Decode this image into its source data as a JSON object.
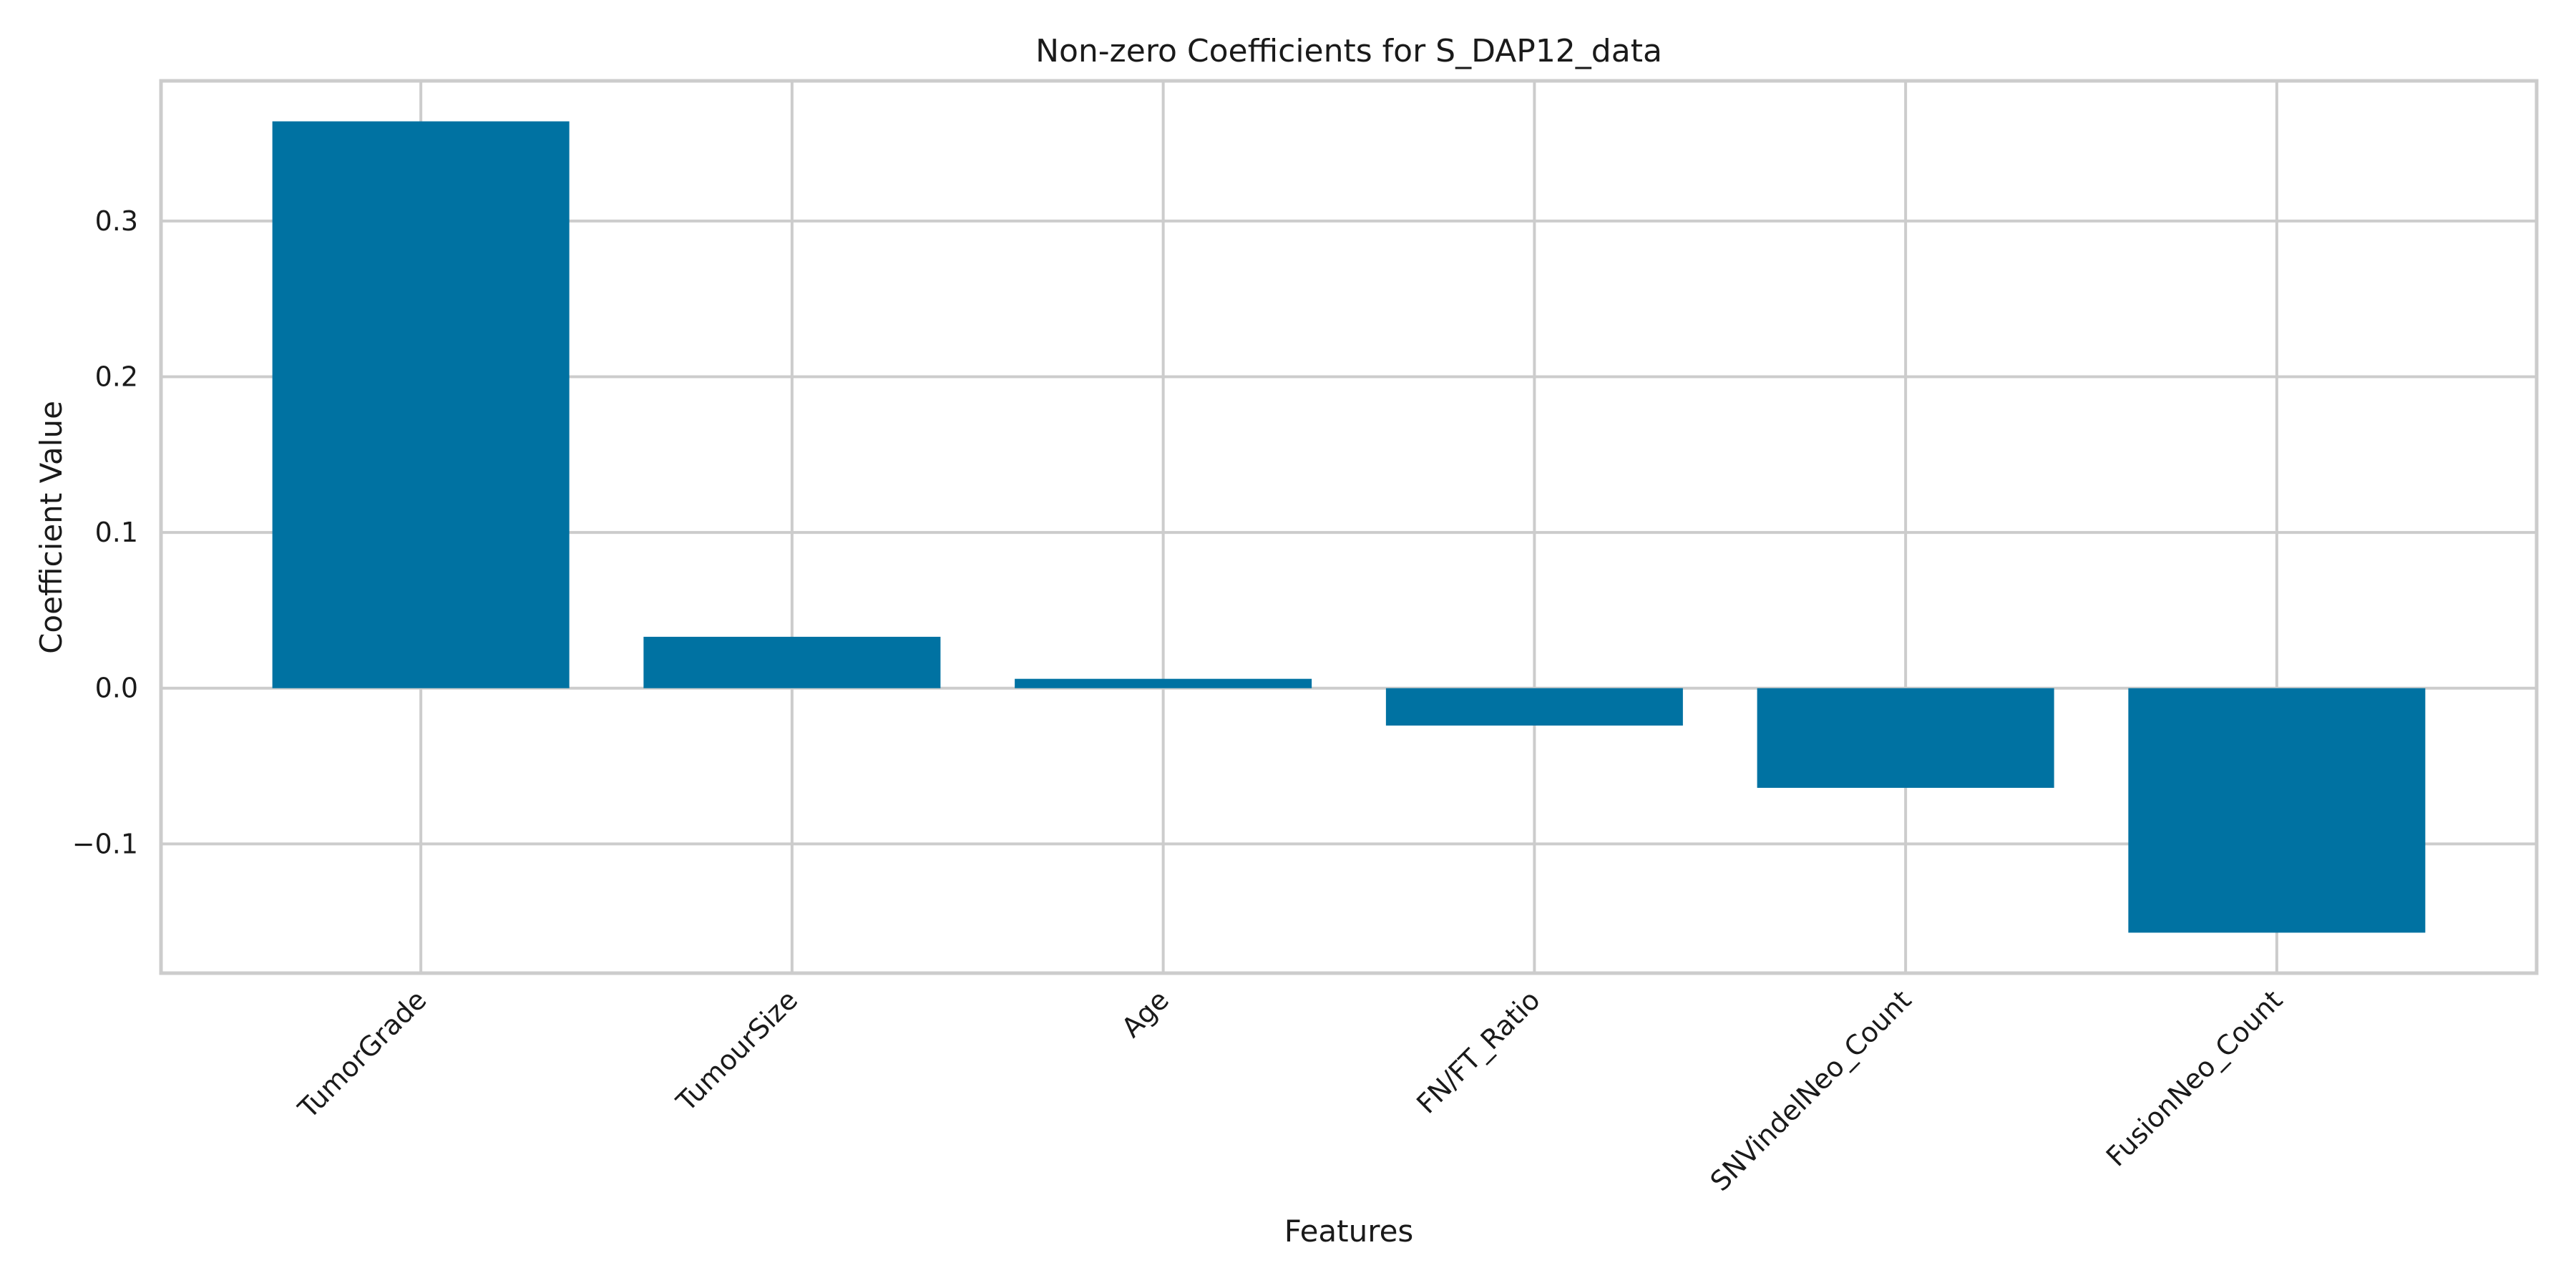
{
  "chart_data": {
    "type": "bar",
    "title": "Non-zero Coefficients for S_DAP12_data",
    "xlabel": "Features",
    "ylabel": "Coefficient Value",
    "categories": [
      "TumorGrade",
      "TumourSize",
      "Age",
      "FN/FT_Ratio",
      "SNVindelNeo_Count",
      "FusionNeo_Count"
    ],
    "values": [
      0.364,
      0.033,
      0.006,
      -0.024,
      -0.064,
      -0.157
    ],
    "ylim": [
      -0.183,
      0.39
    ],
    "yticks": [
      -0.1,
      0.0,
      0.1,
      0.2,
      0.3
    ],
    "ytick_labels": [
      "−0.1",
      "0.0",
      "0.1",
      "0.2",
      "0.3"
    ],
    "grid": true,
    "bar_color": "#0072a2",
    "grid_color": "#cccccc"
  }
}
